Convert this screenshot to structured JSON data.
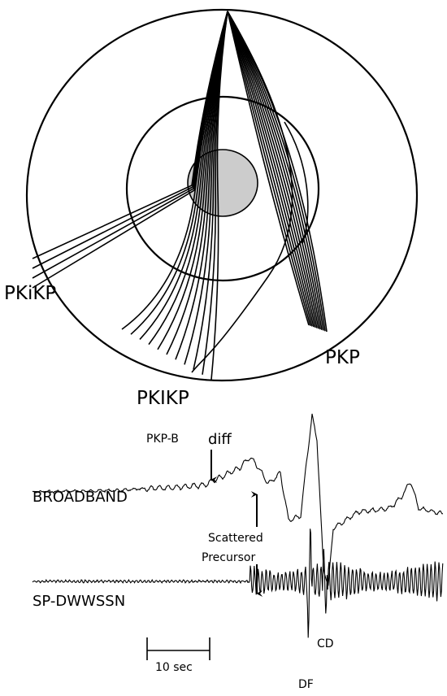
{
  "ray_diagram": {
    "labels": {
      "reflected": "PKiKP",
      "outer_core": "PKP",
      "inner_core": "PKIKP"
    }
  },
  "seismograms": {
    "arrival_labels": {
      "pkp_b": "PKP-B",
      "diff": "diff",
      "df": "DF",
      "cd": "CD"
    },
    "traces": {
      "broadband": "BROADBAND",
      "short_period": "SP-DWWSSN"
    },
    "precursor": [
      "Scattered",
      "Precursor"
    ],
    "scale_bar": "10 sec"
  }
}
